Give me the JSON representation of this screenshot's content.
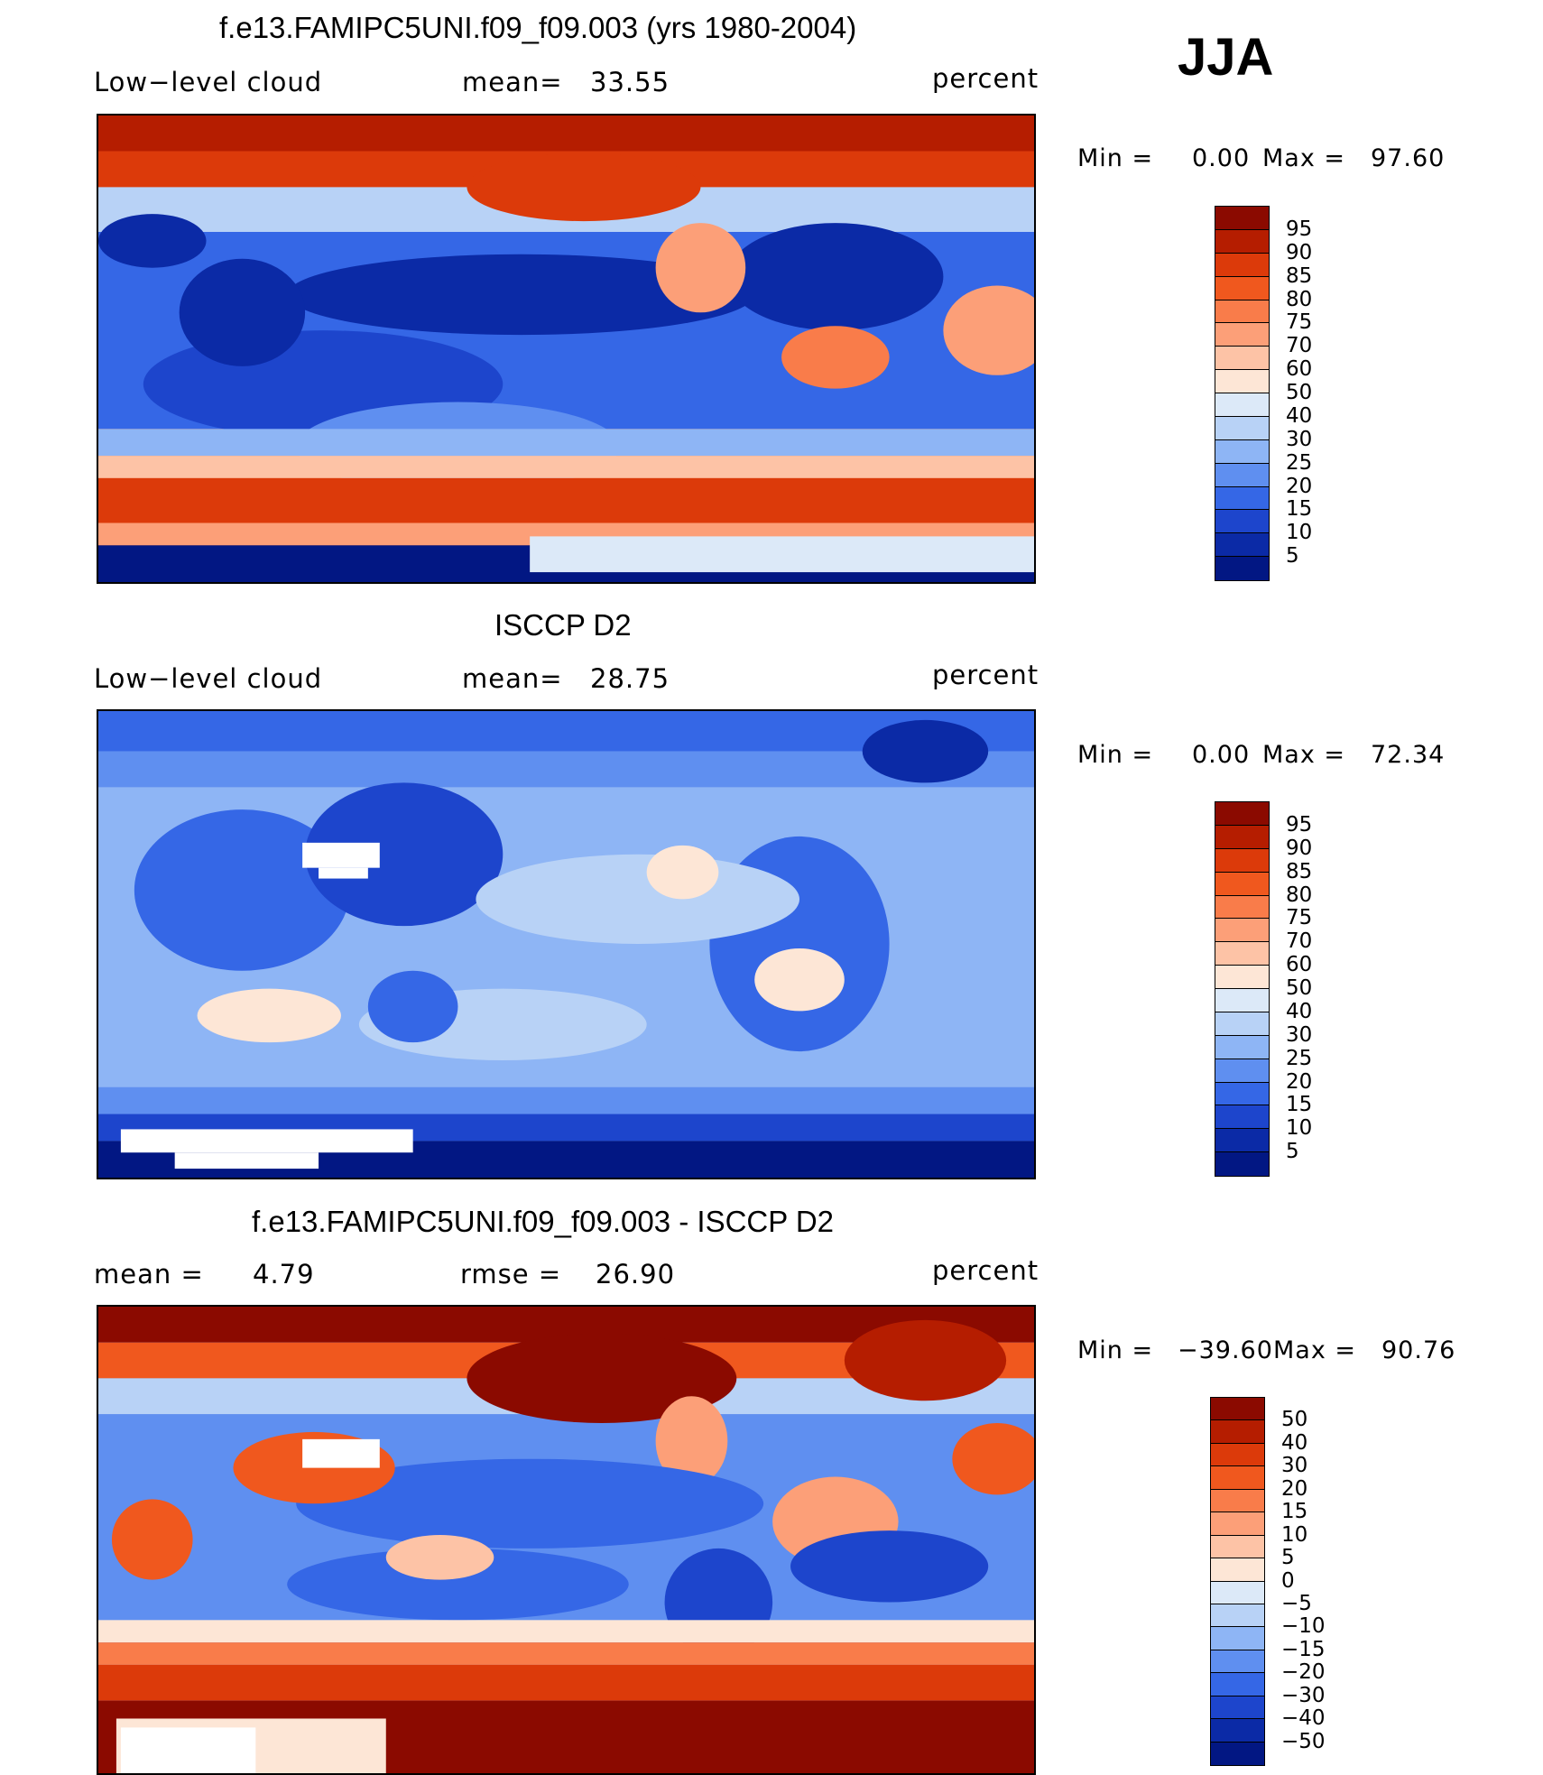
{
  "season": "JJA",
  "panels": [
    {
      "title": "f.e13.FAMIPC5UNI.f09_f09.003 (yrs 1980-2004)",
      "left": "Low−level cloud",
      "mid_label": "mean=",
      "mid_value": "33.55",
      "units": "percent",
      "min_label": "Min  =",
      "min_value": "0.00",
      "max_label": "Max  =",
      "max_value": "97.60",
      "levels": [
        "95",
        "90",
        "85",
        "80",
        "75",
        "70",
        "60",
        "50",
        "40",
        "30",
        "25",
        "20",
        "15",
        "10",
        "5"
      ],
      "colors": [
        "#8b0a00",
        "#b51d00",
        "#dc3a0a",
        "#f0581e",
        "#f97c4a",
        "#fc9f78",
        "#fdc3a6",
        "#fde6d6",
        "#dce9f8",
        "#b8d2f6",
        "#8eb5f5",
        "#5f8ff0",
        "#3567e6",
        "#1d45cc",
        "#0b2aa6",
        "#021783"
      ]
    },
    {
      "title": "ISCCP D2",
      "left": "Low−level cloud",
      "mid_label": "mean=",
      "mid_value": "28.75",
      "units": "percent",
      "min_label": "Min  =",
      "min_value": "0.00",
      "max_label": "Max  =",
      "max_value": "72.34",
      "levels": [
        "95",
        "90",
        "85",
        "80",
        "75",
        "70",
        "60",
        "50",
        "40",
        "30",
        "25",
        "20",
        "15",
        "10",
        "5"
      ],
      "colors": [
        "#8b0a00",
        "#b51d00",
        "#dc3a0a",
        "#f0581e",
        "#f97c4a",
        "#fc9f78",
        "#fdc3a6",
        "#fde6d6",
        "#dce9f8",
        "#b8d2f6",
        "#8eb5f5",
        "#5f8ff0",
        "#3567e6",
        "#1d45cc",
        "#0b2aa6",
        "#021783"
      ]
    },
    {
      "title": "f.e13.FAMIPC5UNI.f09_f09.003 - ISCCP D2",
      "left_label": "mean =",
      "left_value": "4.79",
      "mid_label": "rmse  =",
      "mid_value": "26.90",
      "units": "percent",
      "min_label": "Min  =",
      "min_value": "−39.60",
      "max_label": "Max  =",
      "max_value": "90.76",
      "levels": [
        "50",
        "40",
        "30",
        "20",
        "15",
        "10",
        "5",
        "0",
        "−5",
        "−10",
        "−15",
        "−20",
        "−30",
        "−40",
        "−50"
      ],
      "colors": [
        "#8b0a00",
        "#b51d00",
        "#dc3a0a",
        "#f0581e",
        "#f97c4a",
        "#fc9f78",
        "#fdc3a6",
        "#fde6d6",
        "#dce9f8",
        "#b8d2f6",
        "#8eb5f5",
        "#5f8ff0",
        "#3567e6",
        "#1d45cc",
        "#0b2aa6",
        "#021783"
      ]
    }
  ]
}
